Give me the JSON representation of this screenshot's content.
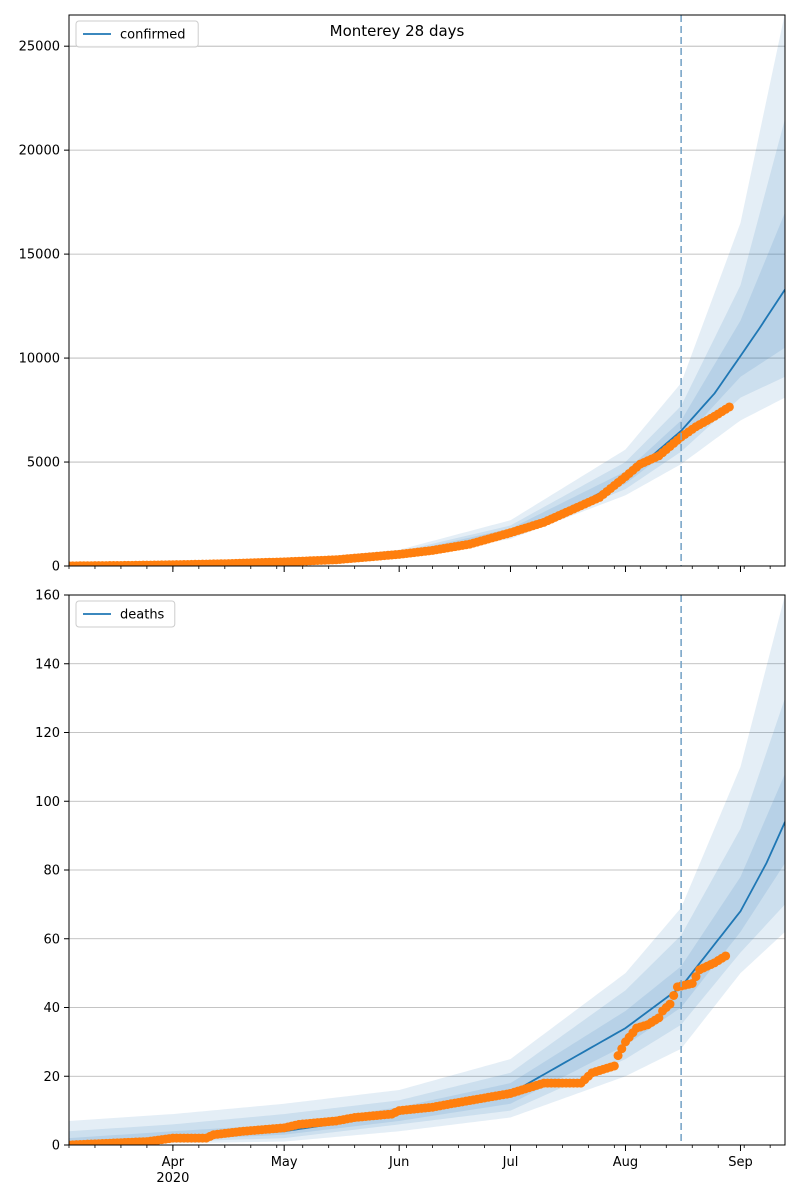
{
  "figure": {
    "title": "Monterey 28 days"
  },
  "colors": {
    "model": "#1f77b4",
    "observed": "#ff7f0e",
    "band": "#1f77b4",
    "grid": "#b0b0b0",
    "vline": "#7aa6c8"
  },
  "chart_data": [
    {
      "type": "line",
      "title": "Monterey 28 days",
      "legend": {
        "entries": [
          "confirmed"
        ],
        "placement": "top-left"
      },
      "grid": "horizontal",
      "xlabel": "",
      "ylabel": "",
      "x_range": [
        "2020-03-04",
        "2020-09-13"
      ],
      "x_ticks": [
        {
          "date": "2020-04-01",
          "label": "Apr"
        },
        {
          "date": "2020-05-01",
          "label": "May"
        },
        {
          "date": "2020-06-01",
          "label": "Jun"
        },
        {
          "date": "2020-07-01",
          "label": "Jul"
        },
        {
          "date": "2020-08-01",
          "label": "Aug"
        },
        {
          "date": "2020-09-01",
          "label": "Sep"
        }
      ],
      "x_year_label": "",
      "y_range": [
        0,
        26500
      ],
      "y_ticks": [
        0,
        5000,
        10000,
        15000,
        20000,
        25000
      ],
      "forecast_start": "2020-08-16",
      "model": [
        [
          "2020-03-04",
          0
        ],
        [
          "2020-04-01",
          60
        ],
        [
          "2020-05-01",
          200
        ],
        [
          "2020-06-01",
          560
        ],
        [
          "2020-06-15",
          900
        ],
        [
          "2020-07-01",
          1650
        ],
        [
          "2020-07-15",
          2500
        ],
        [
          "2020-08-01",
          4200
        ],
        [
          "2020-08-16",
          6500
        ],
        [
          "2020-08-25",
          8300
        ],
        [
          "2020-09-01",
          10100
        ],
        [
          "2020-09-06",
          11400
        ],
        [
          "2020-09-13",
          13300
        ]
      ],
      "bands": [
        {
          "lower": [
            [
              "2020-03-04",
              0
            ],
            [
              "2020-05-01",
              150
            ],
            [
              "2020-06-01",
              430
            ],
            [
              "2020-07-01",
              1300
            ],
            [
              "2020-08-01",
              3400
            ],
            [
              "2020-08-16",
              4900
            ],
            [
              "2020-09-01",
              7000
            ],
            [
              "2020-09-13",
              8100
            ]
          ],
          "upper": [
            [
              "2020-03-04",
              30
            ],
            [
              "2020-05-01",
              280
            ],
            [
              "2020-06-01",
              780
            ],
            [
              "2020-07-01",
              2200
            ],
            [
              "2020-08-01",
              5600
            ],
            [
              "2020-08-16",
              8800
            ],
            [
              "2020-09-01",
              16500
            ],
            [
              "2020-09-13",
              26600
            ]
          ]
        },
        {
          "lower": [
            [
              "2020-03-04",
              0
            ],
            [
              "2020-05-01",
              165
            ],
            [
              "2020-06-01",
              470
            ],
            [
              "2020-07-01",
              1420
            ],
            [
              "2020-08-01",
              3700
            ],
            [
              "2020-08-16",
              5500
            ],
            [
              "2020-09-01",
              8100
            ],
            [
              "2020-09-13",
              9100
            ]
          ],
          "upper": [
            [
              "2020-03-04",
              20
            ],
            [
              "2020-05-01",
              250
            ],
            [
              "2020-06-01",
              690
            ],
            [
              "2020-07-01",
              1950
            ],
            [
              "2020-08-01",
              5000
            ],
            [
              "2020-08-16",
              7700
            ],
            [
              "2020-09-01",
              13500
            ],
            [
              "2020-09-13",
              21500
            ]
          ]
        },
        {
          "lower": [
            [
              "2020-03-04",
              0
            ],
            [
              "2020-05-01",
              180
            ],
            [
              "2020-06-01",
              510
            ],
            [
              "2020-07-01",
              1530
            ],
            [
              "2020-08-01",
              3950
            ],
            [
              "2020-08-16",
              6000
            ],
            [
              "2020-09-01",
              9100
            ],
            [
              "2020-09-13",
              10500
            ]
          ],
          "upper": [
            [
              "2020-03-04",
              10
            ],
            [
              "2020-05-01",
              225
            ],
            [
              "2020-06-01",
              620
            ],
            [
              "2020-07-01",
              1800
            ],
            [
              "2020-08-01",
              4550
            ],
            [
              "2020-08-16",
              7000
            ],
            [
              "2020-09-01",
              11800
            ],
            [
              "2020-09-13",
              17000
            ]
          ]
        }
      ],
      "observed": [
        [
          "2020-03-04",
          5
        ],
        [
          "2020-03-20",
          30
        ],
        [
          "2020-04-01",
          60
        ],
        [
          "2020-04-15",
          110
        ],
        [
          "2020-05-01",
          200
        ],
        [
          "2020-05-15",
          300
        ],
        [
          "2020-06-01",
          560
        ],
        [
          "2020-06-10",
          750
        ],
        [
          "2020-06-20",
          1050
        ],
        [
          "2020-07-01",
          1600
        ],
        [
          "2020-07-10",
          2100
        ],
        [
          "2020-07-20",
          2900
        ],
        [
          "2020-07-25",
          3300
        ],
        [
          "2020-08-01",
          4300
        ],
        [
          "2020-08-05",
          4900
        ],
        [
          "2020-08-10",
          5300
        ],
        [
          "2020-08-16",
          6200
        ],
        [
          "2020-08-20",
          6700
        ],
        [
          "2020-08-25",
          7200
        ],
        [
          "2020-08-29",
          7650
        ]
      ]
    },
    {
      "type": "line",
      "title": "",
      "legend": {
        "entries": [
          "deaths"
        ],
        "placement": "top-left"
      },
      "grid": "horizontal",
      "xlabel": "",
      "ylabel": "",
      "x_range": [
        "2020-03-04",
        "2020-09-13"
      ],
      "x_ticks": [
        {
          "date": "2020-04-01",
          "label": "Apr"
        },
        {
          "date": "2020-05-01",
          "label": "May"
        },
        {
          "date": "2020-06-01",
          "label": "Jun"
        },
        {
          "date": "2020-07-01",
          "label": "Jul"
        },
        {
          "date": "2020-08-01",
          "label": "Aug"
        },
        {
          "date": "2020-09-01",
          "label": "Sep"
        }
      ],
      "x_year_label": "2020",
      "y_range": [
        0,
        160
      ],
      "y_ticks": [
        0,
        20,
        40,
        60,
        80,
        100,
        120,
        140,
        160
      ],
      "forecast_start": "2020-08-16",
      "model": [
        [
          "2020-03-04",
          0
        ],
        [
          "2020-03-15",
          1
        ],
        [
          "2020-04-01",
          2
        ],
        [
          "2020-05-01",
          4
        ],
        [
          "2020-06-01",
          9
        ],
        [
          "2020-07-01",
          15
        ],
        [
          "2020-08-01",
          34
        ],
        [
          "2020-08-16",
          46
        ],
        [
          "2020-09-01",
          68
        ],
        [
          "2020-09-08",
          82
        ],
        [
          "2020-09-13",
          94
        ]
      ],
      "bands": [
        {
          "lower": [
            [
              "2020-03-04",
              0
            ],
            [
              "2020-05-01",
              1
            ],
            [
              "2020-06-01",
              4
            ],
            [
              "2020-07-01",
              8
            ],
            [
              "2020-08-01",
              20
            ],
            [
              "2020-08-16",
              28
            ],
            [
              "2020-09-01",
              50
            ],
            [
              "2020-09-13",
              62
            ]
          ],
          "upper": [
            [
              "2020-03-04",
              7
            ],
            [
              "2020-04-01",
              9
            ],
            [
              "2020-05-01",
              12
            ],
            [
              "2020-06-01",
              16
            ],
            [
              "2020-07-01",
              25
            ],
            [
              "2020-08-01",
              50
            ],
            [
              "2020-08-16",
              69
            ],
            [
              "2020-09-01",
              110
            ],
            [
              "2020-09-13",
              160
            ]
          ]
        },
        {
          "lower": [
            [
              "2020-03-04",
              0
            ],
            [
              "2020-05-01",
              2
            ],
            [
              "2020-06-01",
              6
            ],
            [
              "2020-07-01",
              10
            ],
            [
              "2020-08-01",
              25
            ],
            [
              "2020-08-16",
              35
            ],
            [
              "2020-09-01",
              56
            ],
            [
              "2020-09-13",
              70
            ]
          ],
          "upper": [
            [
              "2020-03-04",
              4
            ],
            [
              "2020-04-01",
              6
            ],
            [
              "2020-05-01",
              9
            ],
            [
              "2020-06-01",
              13
            ],
            [
              "2020-07-01",
              21
            ],
            [
              "2020-08-01",
              45
            ],
            [
              "2020-08-16",
              61
            ],
            [
              "2020-09-01",
              92
            ],
            [
              "2020-09-13",
              130
            ]
          ]
        },
        {
          "lower": [
            [
              "2020-03-04",
              0
            ],
            [
              "2020-05-01",
              3
            ],
            [
              "2020-06-01",
              7
            ],
            [
              "2020-07-01",
              12
            ],
            [
              "2020-08-01",
              29
            ],
            [
              "2020-08-16",
              40
            ],
            [
              "2020-09-01",
              62
            ],
            [
              "2020-09-13",
              82
            ]
          ],
          "upper": [
            [
              "2020-03-04",
              2
            ],
            [
              "2020-04-01",
              4
            ],
            [
              "2020-05-01",
              6
            ],
            [
              "2020-06-01",
              11
            ],
            [
              "2020-07-01",
              18
            ],
            [
              "2020-08-01",
              39
            ],
            [
              "2020-08-16",
              52
            ],
            [
              "2020-09-01",
              78
            ],
            [
              "2020-09-13",
              108
            ]
          ]
        }
      ],
      "observed": [
        [
          "2020-03-04",
          0
        ],
        [
          "2020-03-25",
          1
        ],
        [
          "2020-04-01",
          2
        ],
        [
          "2020-04-10",
          2
        ],
        [
          "2020-04-12",
          3
        ],
        [
          "2020-04-20",
          4
        ],
        [
          "2020-05-01",
          5
        ],
        [
          "2020-05-05",
          6
        ],
        [
          "2020-05-15",
          7
        ],
        [
          "2020-05-20",
          8
        ],
        [
          "2020-05-30",
          9
        ],
        [
          "2020-06-01",
          10
        ],
        [
          "2020-06-10",
          11
        ],
        [
          "2020-06-15",
          12
        ],
        [
          "2020-07-01",
          15
        ],
        [
          "2020-07-07",
          17
        ],
        [
          "2020-07-10",
          18
        ],
        [
          "2020-07-20",
          18
        ],
        [
          "2020-07-23",
          21
        ],
        [
          "2020-07-26",
          22
        ],
        [
          "2020-07-29",
          23
        ],
        [
          "2020-07-30",
          26
        ],
        [
          "2020-08-01",
          30
        ],
        [
          "2020-08-04",
          34
        ],
        [
          "2020-08-07",
          35
        ],
        [
          "2020-08-10",
          37
        ],
        [
          "2020-08-11",
          39
        ],
        [
          "2020-08-13",
          41
        ],
        [
          "2020-08-15",
          46
        ],
        [
          "2020-08-19",
          47
        ],
        [
          "2020-08-20",
          49
        ],
        [
          "2020-08-21",
          51
        ],
        [
          "2020-08-25",
          53
        ],
        [
          "2020-08-28",
          55
        ]
      ]
    }
  ]
}
